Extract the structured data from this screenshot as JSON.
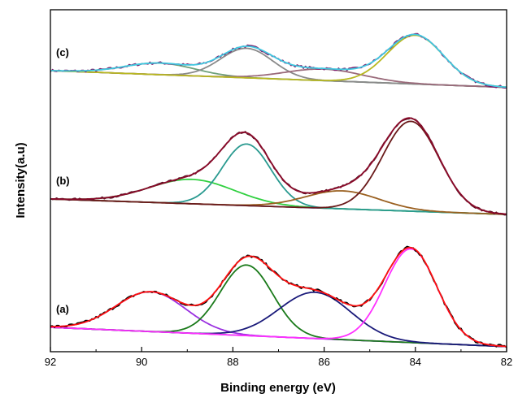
{
  "chart_data": {
    "type": "line",
    "title": "",
    "xlabel": "Binding energy (eV)",
    "ylabel": "Intensity(a.u)",
    "xlim": [
      92,
      82
    ],
    "x_reversed": true,
    "y_ticks_shown": false,
    "x_ticks": [
      92,
      90,
      88,
      86,
      84,
      82
    ],
    "grid": false,
    "legend": "none",
    "panels": [
      {
        "label": "(c)",
        "offset": 1.0,
        "background": {
          "color": "#7a3a6a",
          "start": 0.0,
          "end": -0.13
        },
        "raw_color": "#7a1a6a",
        "envelope_color": "#40c8e0",
        "raw_noise": 0.01,
        "peaks": [
          {
            "center": 89.6,
            "height": 0.09,
            "fwhm": 1.8,
            "color": "#6fa07a"
          },
          {
            "center": 87.7,
            "height": 0.23,
            "fwhm": 1.35,
            "color": "#8a8a8a"
          },
          {
            "center": 86.0,
            "height": 0.09,
            "fwhm": 2.0,
            "color": "#9a6a7a"
          },
          {
            "center": 84.0,
            "height": 0.38,
            "fwhm": 1.45,
            "color": "#b8b820"
          }
        ]
      },
      {
        "label": "(b)",
        "offset": 0.0,
        "background": {
          "color": "#2030a0",
          "start": 0.0,
          "end": -0.12
        },
        "raw_color": "#551020",
        "envelope_color": "#8a0a2a",
        "raw_noise": 0.008,
        "peaks": [
          {
            "center": 88.9,
            "height": 0.19,
            "fwhm": 2.2,
            "color": "#30d040"
          },
          {
            "center": 87.7,
            "height": 0.48,
            "fwhm": 1.25,
            "color": "#2a9a90"
          },
          {
            "center": 85.6,
            "height": 0.14,
            "fwhm": 1.9,
            "color": "#9a6020"
          },
          {
            "center": 84.1,
            "height": 0.7,
            "fwhm": 1.45,
            "color": "#6a1a1a"
          }
        ]
      },
      {
        "label": "(a)",
        "offset": -1.0,
        "background": {
          "color": "#3a20a0",
          "start": 0.0,
          "end": -0.15
        },
        "raw_color": "#000000",
        "envelope_color": "#ff1010",
        "raw_noise": 0.012,
        "peaks": [
          {
            "center": 89.8,
            "height": 0.31,
            "fwhm": 1.8,
            "color": "#9a30e0"
          },
          {
            "center": 87.7,
            "height": 0.55,
            "fwhm": 1.35,
            "color": "#1a7a1a"
          },
          {
            "center": 86.2,
            "height": 0.36,
            "fwhm": 1.85,
            "color": "#1a1a7a"
          },
          {
            "center": 84.1,
            "height": 0.73,
            "fwhm": 1.35,
            "color": "#ff30ff"
          }
        ]
      }
    ]
  }
}
